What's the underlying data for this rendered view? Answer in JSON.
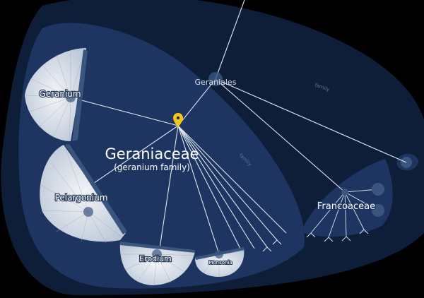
{
  "colors": {
    "background": "#000000",
    "order_region": "#0f1e38",
    "family_region": "#1d3560",
    "accent_pin": "#f5c518",
    "line": "#dfe6f0"
  },
  "order": {
    "label": "Geraniales",
    "rank_label": "family"
  },
  "focus": {
    "title": "Geraniaceae",
    "subtitle": "(geranium family)",
    "rank_label": "family",
    "pin_icon": "location-pin-icon"
  },
  "genera": {
    "geranium": "Geranium",
    "pelargonium": "Pelargonium",
    "erodium": "Erodium",
    "monsonia": "Monsonia"
  },
  "sibling_family": {
    "label": "Francoaceae"
  }
}
